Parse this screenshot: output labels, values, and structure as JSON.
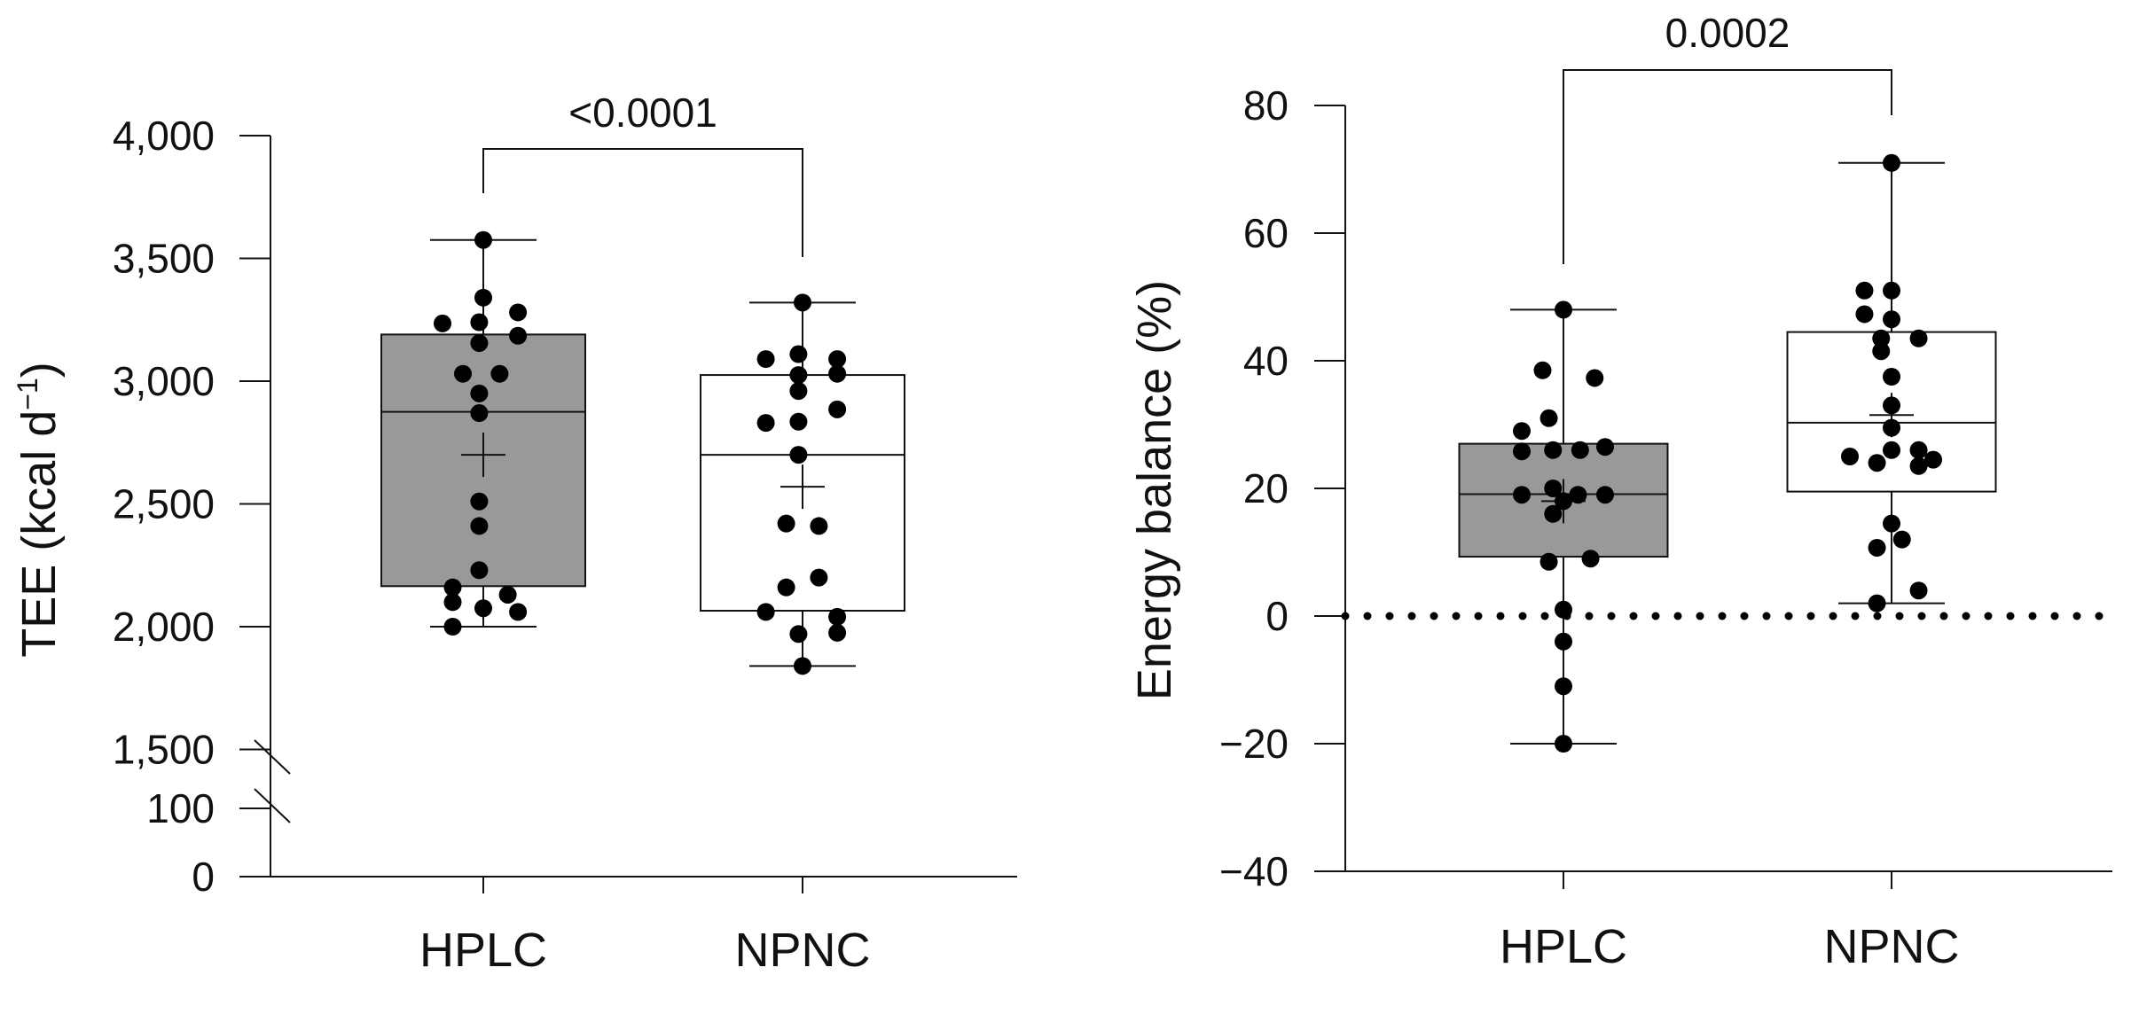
{
  "chart_data": [
    {
      "type": "box",
      "title": "",
      "ylabel": "TEE (kcal d",
      "ylabel_sup": "−1",
      "ylabel_close": ")",
      "categories": [
        "HPLC",
        "NPNC"
      ],
      "ylim": [
        0,
        4000
      ],
      "axis_break": [
        100,
        1500
      ],
      "yticks": [
        {
          "value": 0,
          "label": "0"
        },
        {
          "value": 100,
          "label": "100"
        },
        {
          "value": 1500,
          "label": "1,500"
        },
        {
          "value": 2000,
          "label": "2,000"
        },
        {
          "value": 2500,
          "label": "2,500"
        },
        {
          "value": 3000,
          "label": "3,000"
        },
        {
          "value": 3500,
          "label": "3,500"
        },
        {
          "value": 4000,
          "label": "4,000"
        }
      ],
      "p_value": "<0.0001",
      "groups": [
        {
          "name": "HPLC",
          "fill": "#999999",
          "min": 2000,
          "q1": 2165,
          "median": 2875,
          "q3": 3190,
          "max": 3575,
          "mean": 2700,
          "points": [
            [
              0,
              3575
            ],
            [
              0,
              3340
            ],
            [
              -0.2,
              3235
            ],
            [
              -0.02,
              3240
            ],
            [
              0.17,
              3280
            ],
            [
              0.17,
              3185
            ],
            [
              -0.02,
              3155
            ],
            [
              -0.1,
              3030
            ],
            [
              0.08,
              3030
            ],
            [
              -0.02,
              2950
            ],
            [
              -0.02,
              2870
            ],
            [
              -0.02,
              2510
            ],
            [
              -0.02,
              2410
            ],
            [
              -0.02,
              2230
            ],
            [
              -0.15,
              2160
            ],
            [
              0.12,
              2130
            ],
            [
              -0.15,
              2100
            ],
            [
              0.0,
              2075
            ],
            [
              0.17,
              2060
            ],
            [
              -0.15,
              2000
            ]
          ]
        },
        {
          "name": "NPNC",
          "fill": "#ffffff",
          "min": 1840,
          "q1": 2065,
          "median": 2700,
          "q3": 3025,
          "max": 3320,
          "mean": 2570,
          "points": [
            [
              0,
              3320
            ],
            [
              -0.18,
              3090
            ],
            [
              -0.02,
              3110
            ],
            [
              0.17,
              3090
            ],
            [
              -0.02,
              3025
            ],
            [
              0.17,
              3030
            ],
            [
              -0.02,
              2960
            ],
            [
              0.17,
              2885
            ],
            [
              -0.18,
              2830
            ],
            [
              -0.02,
              2835
            ],
            [
              -0.02,
              2700
            ],
            [
              -0.08,
              2420
            ],
            [
              0.08,
              2410
            ],
            [
              0.08,
              2200
            ],
            [
              -0.08,
              2160
            ],
            [
              -0.18,
              2060
            ],
            [
              0.17,
              2040
            ],
            [
              -0.02,
              1970
            ],
            [
              0.17,
              1975
            ],
            [
              0.0,
              1840
            ]
          ]
        }
      ]
    },
    {
      "type": "box",
      "title": "",
      "ylabel": "Energy balance (%)",
      "categories": [
        "HPLC",
        "NPNC"
      ],
      "ylim": [
        -40,
        80
      ],
      "yticks": [
        {
          "value": -40,
          "label": "−40"
        },
        {
          "value": -20,
          "label": "−20"
        },
        {
          "value": 0,
          "label": "0"
        },
        {
          "value": 20,
          "label": "20"
        },
        {
          "value": 40,
          "label": "40"
        },
        {
          "value": 60,
          "label": "60"
        },
        {
          "value": 80,
          "label": "80"
        }
      ],
      "reference_line": 0,
      "p_value": "0.0002",
      "groups": [
        {
          "name": "HPLC",
          "fill": "#999999",
          "min": -20,
          "q1": 9.3,
          "median": 19.1,
          "q3": 27,
          "max": 48,
          "mean": 18,
          "points": [
            [
              0,
              48
            ],
            [
              -0.1,
              38.5
            ],
            [
              0.15,
              37.3
            ],
            [
              -0.07,
              31
            ],
            [
              -0.2,
              29
            ],
            [
              -0.2,
              25.8
            ],
            [
              -0.05,
              26
            ],
            [
              0.08,
              26
            ],
            [
              0.2,
              26.5
            ],
            [
              -0.2,
              19
            ],
            [
              -0.05,
              20
            ],
            [
              0.07,
              19
            ],
            [
              0.2,
              19
            ],
            [
              0.0,
              18
            ],
            [
              -0.05,
              16
            ],
            [
              0.13,
              9
            ],
            [
              -0.07,
              8.5
            ],
            [
              0.0,
              1
            ],
            [
              0.0,
              -4
            ],
            [
              0.0,
              -11
            ],
            [
              0.0,
              -20
            ]
          ]
        },
        {
          "name": "NPNC",
          "fill": "#ffffff",
          "min": 2,
          "q1": 19.5,
          "median": 30.3,
          "q3": 44.5,
          "max": 71,
          "mean": 31.5,
          "points": [
            [
              0,
              71
            ],
            [
              -0.13,
              51
            ],
            [
              0.0,
              51
            ],
            [
              -0.13,
              47.3
            ],
            [
              0.0,
              46.5
            ],
            [
              0.13,
              43.5
            ],
            [
              -0.05,
              43.5
            ],
            [
              -0.05,
              41.5
            ],
            [
              0.0,
              37.5
            ],
            [
              0.0,
              33
            ],
            [
              0.0,
              29.5
            ],
            [
              0.0,
              26
            ],
            [
              0.13,
              26
            ],
            [
              -0.2,
              25
            ],
            [
              0.2,
              24.5
            ],
            [
              -0.07,
              24
            ],
            [
              0.13,
              23.5
            ],
            [
              0.0,
              14.5
            ],
            [
              0.05,
              12
            ],
            [
              -0.07,
              10.7
            ],
            [
              0.13,
              4
            ],
            [
              -0.07,
              2
            ]
          ]
        }
      ]
    }
  ]
}
